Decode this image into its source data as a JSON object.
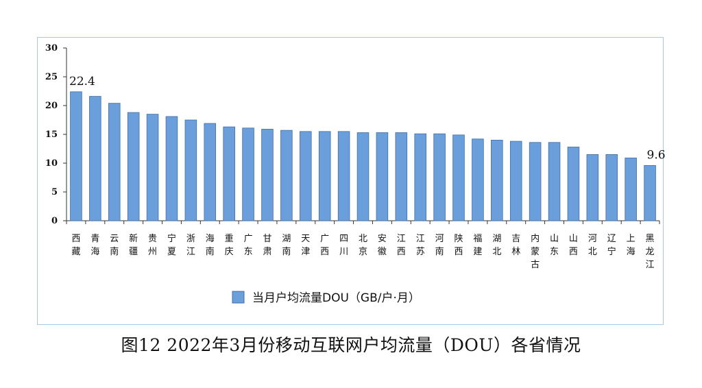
{
  "chart_data": {
    "type": "bar",
    "categories": [
      "西藏",
      "青海",
      "云南",
      "新疆",
      "贵州",
      "宁夏",
      "浙江",
      "海南",
      "重庆",
      "广东",
      "甘肃",
      "湖南",
      "天津",
      "广西",
      "四川",
      "北京",
      "安徽",
      "江西",
      "江苏",
      "河南",
      "陕西",
      "福建",
      "湖北",
      "吉林",
      "内蒙古",
      "山东",
      "山西",
      "河北",
      "辽宁",
      "上海",
      "黑龙江"
    ],
    "series": [
      {
        "name": "当月户均流量DOU（GB/户·月）",
        "values": [
          22.4,
          21.6,
          20.4,
          18.8,
          18.5,
          18.1,
          17.5,
          16.9,
          16.3,
          16.1,
          15.9,
          15.7,
          15.5,
          15.5,
          15.5,
          15.3,
          15.3,
          15.3,
          15.1,
          15.1,
          14.9,
          14.2,
          14.0,
          13.8,
          13.6,
          13.6,
          12.8,
          11.5,
          11.5,
          10.9,
          9.6
        ]
      }
    ],
    "data_labels": [
      {
        "category": "西藏",
        "text": "22.4"
      },
      {
        "category": "黑龙江",
        "text": "9.6"
      }
    ],
    "ylim": [
      0,
      30
    ],
    "y_ticks": [
      "0",
      "5",
      "10",
      "15",
      "20",
      "25",
      "30"
    ],
    "xlabel": "",
    "ylabel": "",
    "grid": false,
    "legend": "bottom",
    "bar_color": "#6a9fdb",
    "bar_edge_color": "#3f6fa6",
    "frame_color": "#a7c8e6"
  },
  "legend": {
    "label": "当月户均流量DOU（GB/户·月）"
  },
  "caption": "图12 2022年3月份移动互联网户均流量（DOU）各省情况"
}
